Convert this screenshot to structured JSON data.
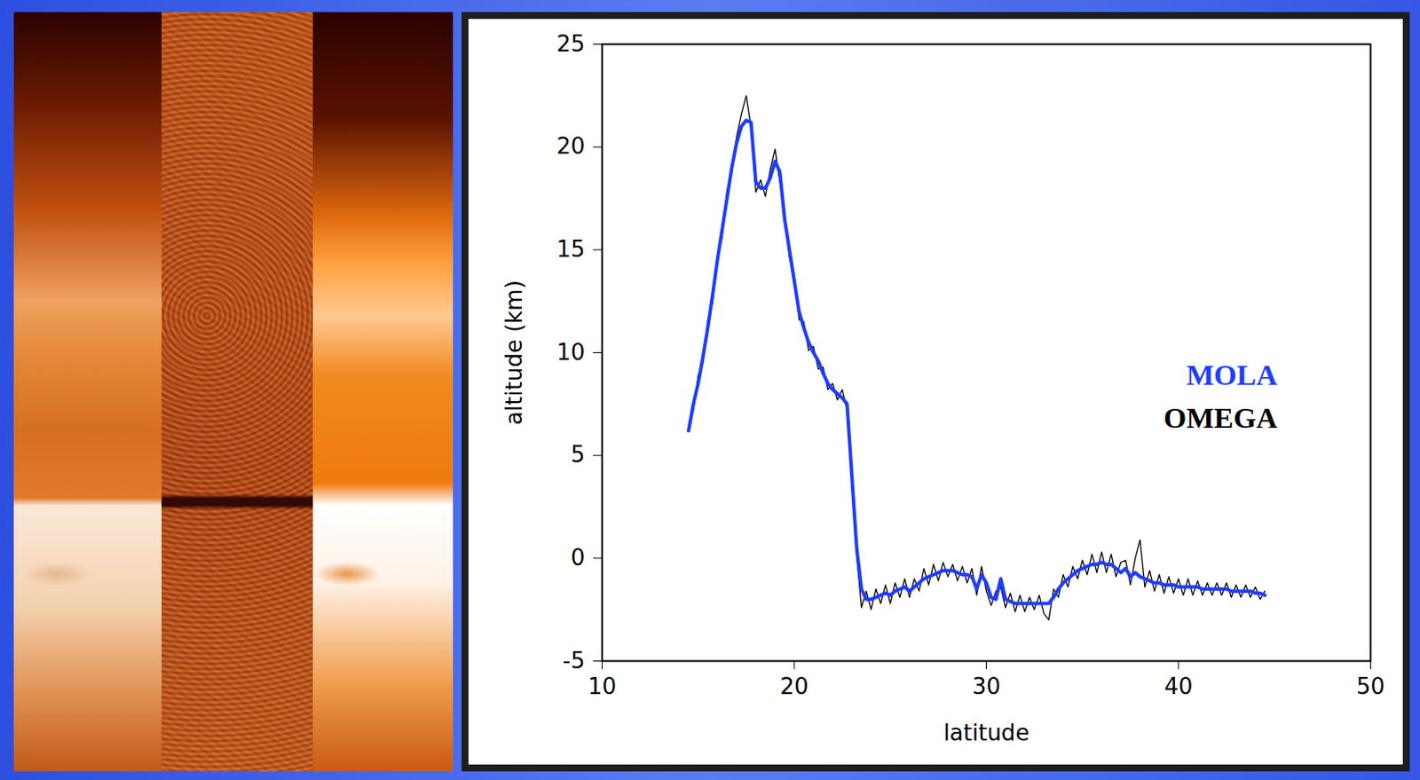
{
  "chart_data": {
    "type": "line",
    "xlabel": "latitude",
    "ylabel": "altitude (km)",
    "xlim": [
      10,
      50
    ],
    "xticks": [
      10,
      20,
      30,
      40,
      50
    ],
    "ylim": [
      -5,
      25
    ],
    "yticks": [
      -5,
      0,
      5,
      10,
      15,
      20,
      25
    ],
    "legend": "right",
    "x": [
      14.5,
      14.75,
      15,
      15.25,
      15.5,
      15.75,
      16,
      16.25,
      16.5,
      16.75,
      17,
      17.25,
      17.5,
      17.75,
      18,
      18.25,
      18.5,
      18.75,
      19,
      19.25,
      19.5,
      19.75,
      20,
      20.25,
      20.5,
      20.75,
      21,
      21.25,
      21.5,
      21.75,
      22,
      22.25,
      22.5,
      22.75,
      23,
      23.25,
      23.5,
      23.75,
      24,
      24.25,
      24.5,
      24.75,
      25,
      25.25,
      25.5,
      25.75,
      26,
      26.25,
      26.5,
      26.75,
      27,
      27.25,
      27.5,
      27.75,
      28,
      28.25,
      28.5,
      28.75,
      29,
      29.25,
      29.5,
      29.75,
      30,
      30.25,
      30.5,
      30.75,
      31,
      31.25,
      31.5,
      31.75,
      32,
      32.25,
      32.5,
      32.75,
      33,
      33.25,
      33.5,
      33.75,
      34,
      34.25,
      34.5,
      34.75,
      35,
      35.25,
      35.5,
      35.75,
      36,
      36.25,
      36.5,
      36.75,
      37,
      37.25,
      37.5,
      37.75,
      38,
      38.25,
      38.5,
      38.75,
      39,
      39.25,
      39.5,
      39.75,
      40,
      40.25,
      40.5,
      40.75,
      41,
      41.25,
      41.5,
      41.75,
      42,
      42.25,
      42.5,
      42.75,
      43,
      43.25,
      43.5,
      43.75,
      44,
      44.25,
      44.5
    ],
    "series": [
      {
        "name": "MOLA",
        "color": "#1f3cff",
        "values": [
          6.2,
          7.5,
          8.5,
          9.8,
          11.2,
          12.8,
          14.5,
          16.0,
          17.5,
          19.0,
          20.2,
          21.0,
          21.3,
          21.2,
          18.3,
          18.0,
          18.0,
          18.5,
          19.3,
          18.8,
          16.5,
          15.0,
          13.5,
          12.0,
          11.2,
          10.5,
          10.0,
          9.6,
          9.0,
          8.5,
          8.2,
          8.0,
          7.8,
          7.5,
          4.0,
          0.5,
          -1.5,
          -2.0,
          -2.0,
          -1.9,
          -1.8,
          -1.7,
          -1.8,
          -1.6,
          -1.5,
          -1.4,
          -1.6,
          -1.4,
          -1.2,
          -1.0,
          -0.9,
          -0.8,
          -0.7,
          -0.6,
          -0.6,
          -0.6,
          -0.7,
          -0.8,
          -0.8,
          -0.9,
          -1.5,
          -0.8,
          -1.2,
          -1.9,
          -2.0,
          -1.0,
          -2.0,
          -2.1,
          -2.2,
          -2.2,
          -2.2,
          -2.2,
          -2.2,
          -2.2,
          -2.2,
          -2.2,
          -1.9,
          -1.5,
          -1.2,
          -1.0,
          -0.8,
          -0.6,
          -0.5,
          -0.4,
          -0.3,
          -0.3,
          -0.2,
          -0.3,
          -0.3,
          -0.5,
          -0.7,
          -0.5,
          -0.9,
          -0.7,
          -0.9,
          -1.0,
          -1.1,
          -1.2,
          -1.2,
          -1.3,
          -1.3,
          -1.3,
          -1.4,
          -1.4,
          -1.4,
          -1.4,
          -1.4,
          -1.5,
          -1.5,
          -1.5,
          -1.5,
          -1.5,
          -1.5,
          -1.6,
          -1.6,
          -1.6,
          -1.6,
          -1.6,
          -1.7,
          -1.7,
          -1.8
        ]
      },
      {
        "name": "OMEGA",
        "color": "#000000",
        "values": [
          6.3,
          7.2,
          8.9,
          9.5,
          11.6,
          12.4,
          14.7,
          15.6,
          17.9,
          18.7,
          20.5,
          21.6,
          22.5,
          21.0,
          17.8,
          18.4,
          17.6,
          18.9,
          19.9,
          18.3,
          16.9,
          14.6,
          13.8,
          11.6,
          11.5,
          10.1,
          10.3,
          9.2,
          9.3,
          8.2,
          8.5,
          7.7,
          8.2,
          7.2,
          4.3,
          0.1,
          -2.4,
          -1.6,
          -2.5,
          -1.5,
          -2.2,
          -1.3,
          -2.2,
          -1.2,
          -1.9,
          -1.0,
          -1.9,
          -1.0,
          -1.6,
          -0.5,
          -1.3,
          -0.3,
          -1.1,
          -0.2,
          -0.9,
          -0.3,
          -1.1,
          -0.4,
          -1.2,
          -0.5,
          -1.8,
          -0.4,
          -1.6,
          -2.3,
          -1.6,
          -1.4,
          -2.4,
          -1.7,
          -2.6,
          -1.8,
          -2.6,
          -1.9,
          -2.5,
          -1.8,
          -2.7,
          -3.0,
          -1.5,
          -1.9,
          -0.8,
          -1.4,
          -0.4,
          -1.0,
          -0.1,
          -0.8,
          0.2,
          -0.7,
          0.3,
          -0.7,
          0.2,
          -0.9,
          -0.2,
          -0.1,
          -1.3,
          0.0,
          0.9,
          -1.4,
          -0.6,
          -1.6,
          -0.8,
          -1.7,
          -0.9,
          -1.7,
          -1.0,
          -1.8,
          -1.0,
          -1.8,
          -1.1,
          -1.8,
          -1.2,
          -1.8,
          -1.2,
          -1.8,
          -1.2,
          -1.9,
          -1.3,
          -1.9,
          -1.3,
          -1.9,
          -1.4,
          -2.0,
          -1.6
        ]
      }
    ]
  }
}
